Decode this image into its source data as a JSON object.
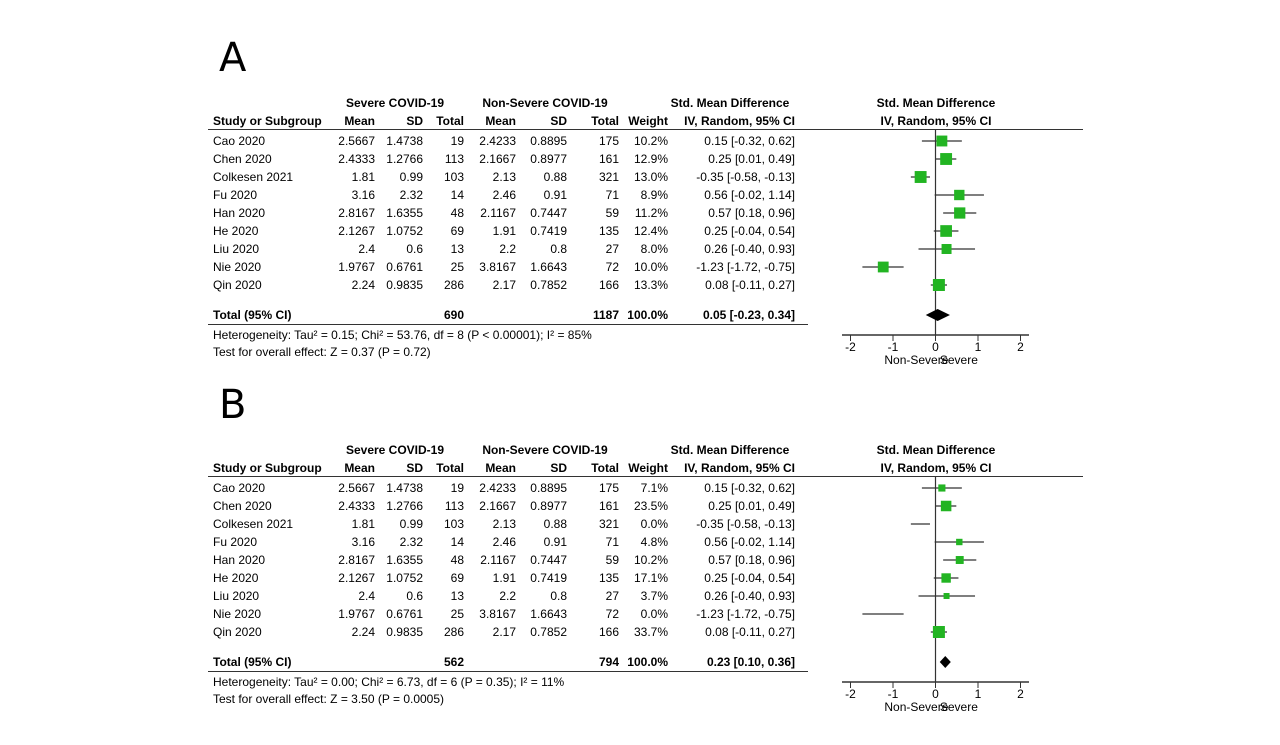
{
  "colors": {
    "accent": "#22b422",
    "ci_line": "#333333",
    "diamond": "#000000"
  },
  "chart_data": [
    {
      "type": "forest",
      "panel_label": "A",
      "column_headers": {
        "group1": "Severe COVID-19",
        "group2": "Non-Severe COVID-19",
        "effect": "Std. Mean Difference",
        "study": "Study or Subgroup",
        "mean": "Mean",
        "sd": "SD",
        "total": "Total",
        "weight": "Weight",
        "method": "IV, Random, 95% CI"
      },
      "studies": [
        {
          "name": "Cao 2020",
          "m1": "2.5667",
          "sd1": "1.4738",
          "n1": "19",
          "m2": "2.4233",
          "sd2": "0.8895",
          "n2": "175",
          "weight": "10.2%",
          "ci_text": "0.15 [-0.32, 0.62]",
          "est": 0.15,
          "lo": -0.32,
          "hi": 0.62
        },
        {
          "name": "Chen 2020",
          "m1": "2.4333",
          "sd1": "1.2766",
          "n1": "113",
          "m2": "2.1667",
          "sd2": "0.8977",
          "n2": "161",
          "weight": "12.9%",
          "ci_text": "0.25 [0.01, 0.49]",
          "est": 0.25,
          "lo": 0.01,
          "hi": 0.49
        },
        {
          "name": "Colkesen 2021",
          "m1": "1.81",
          "sd1": "0.99",
          "n1": "103",
          "m2": "2.13",
          "sd2": "0.88",
          "n2": "321",
          "weight": "13.0%",
          "ci_text": "-0.35 [-0.58, -0.13]",
          "est": -0.35,
          "lo": -0.58,
          "hi": -0.13
        },
        {
          "name": "Fu 2020",
          "m1": "3.16",
          "sd1": "2.32",
          "n1": "14",
          "m2": "2.46",
          "sd2": "0.91",
          "n2": "71",
          "weight": "8.9%",
          "ci_text": "0.56 [-0.02, 1.14]",
          "est": 0.56,
          "lo": -0.02,
          "hi": 1.14
        },
        {
          "name": "Han 2020",
          "m1": "2.8167",
          "sd1": "1.6355",
          "n1": "48",
          "m2": "2.1167",
          "sd2": "0.7447",
          "n2": "59",
          "weight": "11.2%",
          "ci_text": "0.57 [0.18, 0.96]",
          "est": 0.57,
          "lo": 0.18,
          "hi": 0.96
        },
        {
          "name": "He 2020",
          "m1": "2.1267",
          "sd1": "1.0752",
          "n1": "69",
          "m2": "1.91",
          "sd2": "0.7419",
          "n2": "135",
          "weight": "12.4%",
          "ci_text": "0.25 [-0.04, 0.54]",
          "est": 0.25,
          "lo": -0.04,
          "hi": 0.54
        },
        {
          "name": "Liu 2020",
          "m1": "2.4",
          "sd1": "0.6",
          "n1": "13",
          "m2": "2.2",
          "sd2": "0.8",
          "n2": "27",
          "weight": "8.0%",
          "ci_text": "0.26 [-0.40, 0.93]",
          "est": 0.26,
          "lo": -0.4,
          "hi": 0.93
        },
        {
          "name": "Nie 2020",
          "m1": "1.9767",
          "sd1": "0.6761",
          "n1": "25",
          "m2": "3.8167",
          "sd2": "1.6643",
          "n2": "72",
          "weight": "10.0%",
          "ci_text": "-1.23 [-1.72, -0.75]",
          "est": -1.23,
          "lo": -1.72,
          "hi": -0.75
        },
        {
          "name": "Qin 2020",
          "m1": "2.24",
          "sd1": "0.9835",
          "n1": "286",
          "m2": "2.17",
          "sd2": "0.7852",
          "n2": "166",
          "weight": "13.3%",
          "ci_text": "0.08 [-0.11, 0.27]",
          "est": 0.08,
          "lo": -0.11,
          "hi": 0.27
        }
      ],
      "total": {
        "label": "Total (95% CI)",
        "n1": "690",
        "n2": "1187",
        "weight": "100.0%",
        "ci_text": "0.05 [-0.23, 0.34]",
        "est": 0.05,
        "lo": -0.23,
        "hi": 0.34
      },
      "heterogeneity": "Heterogeneity: Tau² = 0.15; Chi² = 53.76, df = 8 (P < 0.00001); I² = 85%",
      "overall_effect": "Test for overall effect: Z = 0.37 (P = 0.72)",
      "axis": {
        "xlim": [
          -2.2,
          2.2
        ],
        "ticks": [
          -2,
          -1,
          0,
          1,
          2
        ],
        "tick_labels": [
          "-2",
          "-1",
          "0",
          "1",
          "2"
        ],
        "left_label": "Non-Severe",
        "right_label": "Severe"
      }
    },
    {
      "type": "forest",
      "panel_label": "B",
      "column_headers": {
        "group1": "Severe COVID-19",
        "group2": "Non-Severe COVID-19",
        "effect": "Std. Mean Difference",
        "study": "Study or Subgroup",
        "mean": "Mean",
        "sd": "SD",
        "total": "Total",
        "weight": "Weight",
        "method": "IV, Random, 95% CI"
      },
      "studies": [
        {
          "name": "Cao 2020",
          "m1": "2.5667",
          "sd1": "1.4738",
          "n1": "19",
          "m2": "2.4233",
          "sd2": "0.8895",
          "n2": "175",
          "weight": "7.1%",
          "ci_text": "0.15 [-0.32, 0.62]",
          "est": 0.15,
          "lo": -0.32,
          "hi": 0.62
        },
        {
          "name": "Chen 2020",
          "m1": "2.4333",
          "sd1": "1.2766",
          "n1": "113",
          "m2": "2.1667",
          "sd2": "0.8977",
          "n2": "161",
          "weight": "23.5%",
          "ci_text": "0.25 [0.01, 0.49]",
          "est": 0.25,
          "lo": 0.01,
          "hi": 0.49
        },
        {
          "name": "Colkesen 2021",
          "m1": "1.81",
          "sd1": "0.99",
          "n1": "103",
          "m2": "2.13",
          "sd2": "0.88",
          "n2": "321",
          "weight": "0.0%",
          "ci_text": "-0.35 [-0.58, -0.13]",
          "est": -0.35,
          "lo": -0.58,
          "hi": -0.13
        },
        {
          "name": "Fu 2020",
          "m1": "3.16",
          "sd1": "2.32",
          "n1": "14",
          "m2": "2.46",
          "sd2": "0.91",
          "n2": "71",
          "weight": "4.8%",
          "ci_text": "0.56 [-0.02, 1.14]",
          "est": 0.56,
          "lo": -0.02,
          "hi": 1.14
        },
        {
          "name": "Han 2020",
          "m1": "2.8167",
          "sd1": "1.6355",
          "n1": "48",
          "m2": "2.1167",
          "sd2": "0.7447",
          "n2": "59",
          "weight": "10.2%",
          "ci_text": "0.57 [0.18, 0.96]",
          "est": 0.57,
          "lo": 0.18,
          "hi": 0.96
        },
        {
          "name": "He 2020",
          "m1": "2.1267",
          "sd1": "1.0752",
          "n1": "69",
          "m2": "1.91",
          "sd2": "0.7419",
          "n2": "135",
          "weight": "17.1%",
          "ci_text": "0.25 [-0.04, 0.54]",
          "est": 0.25,
          "lo": -0.04,
          "hi": 0.54
        },
        {
          "name": "Liu 2020",
          "m1": "2.4",
          "sd1": "0.6",
          "n1": "13",
          "m2": "2.2",
          "sd2": "0.8",
          "n2": "27",
          "weight": "3.7%",
          "ci_text": "0.26 [-0.40, 0.93]",
          "est": 0.26,
          "lo": -0.4,
          "hi": 0.93
        },
        {
          "name": "Nie 2020",
          "m1": "1.9767",
          "sd1": "0.6761",
          "n1": "25",
          "m2": "3.8167",
          "sd2": "1.6643",
          "n2": "72",
          "weight": "0.0%",
          "ci_text": "-1.23 [-1.72, -0.75]",
          "est": -1.23,
          "lo": -1.72,
          "hi": -0.75
        },
        {
          "name": "Qin 2020",
          "m1": "2.24",
          "sd1": "0.9835",
          "n1": "286",
          "m2": "2.17",
          "sd2": "0.7852",
          "n2": "166",
          "weight": "33.7%",
          "ci_text": "0.08 [-0.11, 0.27]",
          "est": 0.08,
          "lo": -0.11,
          "hi": 0.27
        }
      ],
      "total": {
        "label": "Total (95% CI)",
        "n1": "562",
        "n2": "794",
        "weight": "100.0%",
        "ci_text": "0.23 [0.10, 0.36]",
        "est": 0.23,
        "lo": 0.1,
        "hi": 0.36
      },
      "heterogeneity": "Heterogeneity: Tau² = 0.00; Chi² = 6.73, df = 6 (P = 0.35); I² = 11%",
      "overall_effect": "Test for overall effect: Z = 3.50 (P = 0.0005)",
      "axis": {
        "xlim": [
          -2.2,
          2.2
        ],
        "ticks": [
          -2,
          -1,
          0,
          1,
          2
        ],
        "tick_labels": [
          "-2",
          "-1",
          "0",
          "1",
          "2"
        ],
        "left_label": "Non-Severe",
        "right_label": "Severe"
      }
    }
  ]
}
